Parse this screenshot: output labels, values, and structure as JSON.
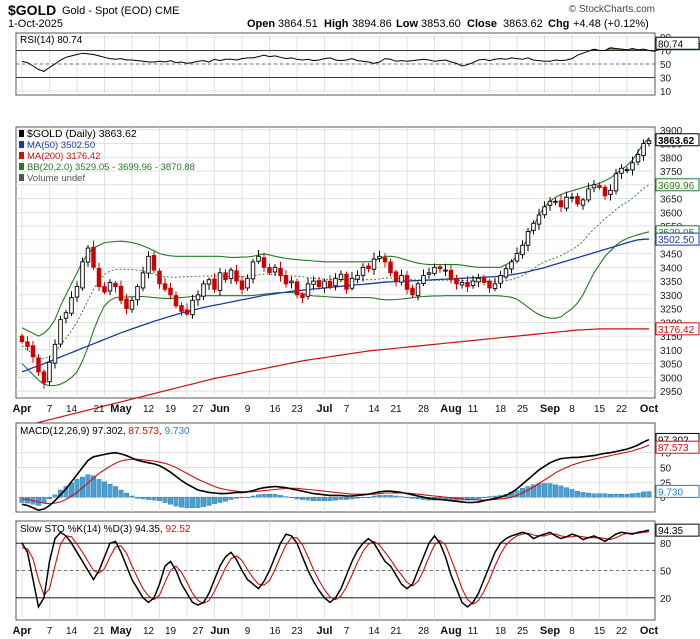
{
  "header": {
    "symbol": "$GOLD",
    "name": "Gold - Spot (EOD)",
    "exchange": "CME",
    "date": "1-Oct-2025",
    "open_label": "Open",
    "open": "3864.51",
    "high_label": "High",
    "high": "3894.86",
    "low_label": "Low",
    "low": "3853.60",
    "close_label": "Close",
    "close": "3863.62",
    "chg_label": "Chg",
    "chg": "+4.48 (+0.12%)",
    "brand": "© StockCharts.com"
  },
  "colors": {
    "price_up": "#000000",
    "price_down": "#cc0000",
    "ma50": "#1c3aa0",
    "ma200": "#cc1111",
    "bb": "#237a23",
    "rsi_fill": "#4f8f4f",
    "macd_hist": "#4a9fd4",
    "grid": "#d7d7d7"
  },
  "chart_data": [
    {
      "panel": "rsi",
      "type": "line",
      "title": "RSI(14) 80.74",
      "last": "80.74",
      "ylim": [
        10,
        90
      ],
      "yticks": [
        "90",
        "70",
        "50",
        "30",
        "10"
      ],
      "overbought": 70,
      "oversold": 30,
      "values": [
        54,
        52,
        47,
        42,
        39,
        45,
        50,
        56,
        60,
        62,
        64,
        66,
        65,
        64,
        62,
        60,
        58,
        57,
        58,
        56,
        56,
        55,
        54,
        53,
        53,
        54,
        53,
        55,
        52,
        53,
        51,
        52,
        54,
        55,
        53,
        57,
        55,
        57,
        57,
        56,
        58,
        59,
        59,
        61,
        63,
        61,
        62,
        60,
        58,
        59,
        57,
        56,
        57,
        55,
        56,
        58,
        59,
        56,
        55,
        56,
        58,
        55,
        54,
        53,
        51,
        53,
        58,
        57,
        54,
        55,
        54,
        55,
        56,
        57,
        56,
        54,
        55,
        56,
        53,
        51,
        47,
        49,
        52,
        56,
        57,
        55,
        57,
        58,
        57,
        59,
        58,
        57,
        59,
        56,
        55,
        54,
        54,
        56,
        55,
        56,
        58,
        63,
        66,
        69,
        72,
        70,
        70,
        74,
        73,
        72,
        71,
        73,
        71,
        72,
        70,
        69,
        72,
        72,
        73,
        76,
        77,
        78,
        79,
        80,
        81
      ]
    },
    {
      "panel": "price",
      "type": "candlestick",
      "title": "$GOLD (Daily) 3863.62",
      "ylim": [
        2925,
        3910
      ],
      "yticks": [
        "3900",
        "3850",
        "3800",
        "3750",
        "3700",
        "3650",
        "3600",
        "3550",
        "3500",
        "3450",
        "3400",
        "3350",
        "3300",
        "3250",
        "3200",
        "3150",
        "3100",
        "3050",
        "3000",
        "2950"
      ],
      "x_labels": [
        "Apr",
        "7",
        "14",
        "21",
        "May",
        "12",
        "19",
        "27",
        "Jun",
        "9",
        "16",
        "23",
        "Jul",
        "7",
        "14",
        "21",
        "28",
        "Aug",
        "11",
        "18",
        "25",
        "Sep",
        "8",
        "15",
        "22",
        "Oct"
      ],
      "legend": [
        {
          "text": "$GOLD (Daily) 3863.62",
          "color": "#000000"
        },
        {
          "text": "MA(50) 3502.50",
          "color": "#1c3aa0"
        },
        {
          "text": "MA(200) 3176.42",
          "color": "#cc1111"
        },
        {
          "text": "BB(20,2.0) 3529.05 - 3699.96 - 3870.88",
          "color": "#237a23"
        },
        {
          "text": "Volume undef",
          "color": "#555555"
        }
      ],
      "value_tags": [
        {
          "text": "3863.62",
          "value": 3863.62,
          "color": "#000000"
        },
        {
          "text": "3699.96",
          "value": 3699.96,
          "color": "#237a23"
        },
        {
          "text": "3529.05",
          "value": 3529.05,
          "color": "#237a23"
        },
        {
          "text": "3502.50",
          "value": 3502.5,
          "color": "#1c3aa0"
        },
        {
          "text": "3176.42",
          "value": 3176.42,
          "color": "#cc1111"
        }
      ],
      "close": [
        3130,
        3112,
        3075,
        3020,
        2980,
        3055,
        3120,
        3210,
        3235,
        3290,
        3330,
        3420,
        3470,
        3400,
        3330,
        3310,
        3345,
        3330,
        3280,
        3250,
        3280,
        3330,
        3380,
        3440,
        3390,
        3340,
        3320,
        3300,
        3260,
        3240,
        3230,
        3280,
        3300,
        3340,
        3355,
        3320,
        3380,
        3355,
        3390,
        3350,
        3320,
        3360,
        3420,
        3440,
        3400,
        3380,
        3400,
        3370,
        3340,
        3350,
        3300,
        3290,
        3340,
        3350,
        3330,
        3350,
        3330,
        3360,
        3375,
        3320,
        3360,
        3370,
        3400,
        3395,
        3430,
        3440,
        3420,
        3380,
        3350,
        3370,
        3320,
        3300,
        3340,
        3370,
        3380,
        3400,
        3395,
        3390,
        3355,
        3340,
        3345,
        3330,
        3350,
        3360,
        3345,
        3325,
        3340,
        3370,
        3395,
        3420,
        3450,
        3480,
        3530,
        3560,
        3590,
        3620,
        3640,
        3640,
        3620,
        3655,
        3655,
        3630,
        3645,
        3685,
        3700,
        3690,
        3660,
        3680,
        3740,
        3760,
        3755,
        3780,
        3810,
        3850,
        3860
      ],
      "ma50": [
        3020,
        3027,
        3035,
        3042,
        3050,
        3058,
        3066,
        3074,
        3082,
        3090,
        3098,
        3106,
        3114,
        3122,
        3130,
        3138,
        3146,
        3154,
        3162,
        3169,
        3176,
        3183,
        3190,
        3197,
        3204,
        3210,
        3216,
        3222,
        3228,
        3234,
        3239,
        3244,
        3249,
        3254,
        3258,
        3262,
        3266,
        3270,
        3274,
        3278,
        3282,
        3286,
        3290,
        3294,
        3298,
        3301,
        3304,
        3307,
        3310,
        3313,
        3315,
        3317,
        3319,
        3321,
        3323,
        3325,
        3327,
        3329,
        3331,
        3333,
        3335,
        3337,
        3338,
        3340,
        3342,
        3344,
        3346,
        3347,
        3348,
        3349,
        3350,
        3351,
        3352,
        3353,
        3354,
        3355,
        3356,
        3357,
        3358,
        3359,
        3360,
        3361,
        3362,
        3363,
        3364,
        3365,
        3366,
        3368,
        3370,
        3373,
        3376,
        3380,
        3384,
        3389,
        3394,
        3399,
        3405,
        3411,
        3417,
        3423,
        3429,
        3435,
        3441,
        3447,
        3453,
        3459,
        3465,
        3471,
        3477,
        3483,
        3489,
        3495,
        3500,
        3502,
        3503
      ],
      "ma200": [
        2820,
        2826,
        2831,
        2836,
        2841,
        2846,
        2851,
        2856,
        2861,
        2866,
        2871,
        2876,
        2881,
        2886,
        2891,
        2896,
        2901,
        2906,
        2911,
        2916,
        2921,
        2926,
        2931,
        2936,
        2941,
        2946,
        2951,
        2956,
        2961,
        2966,
        2971,
        2976,
        2981,
        2986,
        2991,
        2996,
        3000,
        3004,
        3008,
        3012,
        3016,
        3020,
        3024,
        3028,
        3032,
        3036,
        3040,
        3044,
        3048,
        3052,
        3056,
        3060,
        3063,
        3066,
        3069,
        3072,
        3075,
        3078,
        3081,
        3084,
        3087,
        3090,
        3093,
        3096,
        3098,
        3100,
        3102,
        3104,
        3106,
        3108,
        3110,
        3112,
        3114,
        3116,
        3118,
        3120,
        3122,
        3124,
        3126,
        3128,
        3130,
        3132,
        3134,
        3136,
        3138,
        3140,
        3142,
        3144,
        3146,
        3148,
        3150,
        3152,
        3154,
        3156,
        3158,
        3160,
        3162,
        3164,
        3166,
        3168,
        3170,
        3172,
        3173,
        3174,
        3175,
        3176,
        3176,
        3176,
        3176,
        3176,
        3176,
        3176,
        3176,
        3176,
        3176
      ],
      "bb_upper": [
        3180,
        3170,
        3160,
        3150,
        3160,
        3180,
        3210,
        3260,
        3300,
        3340,
        3380,
        3420,
        3450,
        3470,
        3480,
        3490,
        3492,
        3494,
        3495,
        3493,
        3490,
        3485,
        3478,
        3470,
        3460,
        3450,
        3445,
        3442,
        3440,
        3440,
        3440,
        3440,
        3440,
        3440,
        3440,
        3440,
        3440,
        3438,
        3436,
        3436,
        3437,
        3438,
        3440,
        3445,
        3448,
        3445,
        3440,
        3436,
        3432,
        3430,
        3428,
        3426,
        3425,
        3423,
        3422,
        3420,
        3420,
        3420,
        3420,
        3420,
        3420,
        3420,
        3420,
        3420,
        3422,
        3432,
        3440,
        3440,
        3438,
        3432,
        3426,
        3420,
        3415,
        3412,
        3410,
        3410,
        3410,
        3410,
        3410,
        3410,
        3408,
        3405,
        3402,
        3400,
        3400,
        3400,
        3400,
        3400,
        3410,
        3420,
        3440,
        3470,
        3510,
        3550,
        3590,
        3620,
        3640,
        3655,
        3665,
        3672,
        3678,
        3684,
        3690,
        3696,
        3700,
        3705,
        3715,
        3725,
        3740,
        3755,
        3770,
        3790,
        3820,
        3850,
        3871
      ],
      "bb_lower": [
        3050,
        3030,
        3010,
        2990,
        2975,
        2970,
        2970,
        2975,
        2985,
        3000,
        3020,
        3060,
        3110,
        3170,
        3220,
        3260,
        3280,
        3290,
        3292,
        3292,
        3293,
        3294,
        3294,
        3292,
        3290,
        3288,
        3287,
        3287,
        3288,
        3290,
        3292,
        3294,
        3295,
        3296,
        3297,
        3297,
        3297,
        3297,
        3297,
        3297,
        3297,
        3297,
        3298,
        3300,
        3303,
        3305,
        3307,
        3308,
        3308,
        3308,
        3307,
        3305,
        3300,
        3296,
        3295,
        3294,
        3292,
        3291,
        3290,
        3290,
        3290,
        3290,
        3290,
        3290,
        3288,
        3284,
        3282,
        3282,
        3283,
        3285,
        3287,
        3290,
        3292,
        3294,
        3295,
        3296,
        3296,
        3297,
        3297,
        3297,
        3297,
        3297,
        3297,
        3297,
        3297,
        3297,
        3297,
        3296,
        3294,
        3291,
        3284,
        3270,
        3255,
        3240,
        3228,
        3220,
        3215,
        3215,
        3220,
        3235,
        3250,
        3270,
        3300,
        3340,
        3380,
        3410,
        3440,
        3460,
        3480,
        3495,
        3505,
        3512,
        3518,
        3524,
        3529
      ]
    },
    {
      "panel": "macd",
      "type": "line",
      "title": "MACD(12,26,9) 97.302, 87.573, 9.730",
      "macd_label": "MACD(12,26,9)",
      "values_text": [
        "97.302",
        "87.573",
        "9.730"
      ],
      "ylim": [
        -25,
        125
      ],
      "yticks": [
        "75",
        "50",
        "25",
        "0"
      ],
      "macd": [
        -12,
        -14,
        -18,
        -22,
        -20,
        -14,
        -6,
        4,
        14,
        26,
        38,
        50,
        62,
        68,
        70,
        72,
        74,
        75,
        73,
        70,
        66,
        62,
        60,
        58,
        56,
        53,
        48,
        42,
        35,
        28,
        22,
        17,
        12,
        10,
        8,
        7,
        6,
        6,
        7,
        8,
        8,
        9,
        11,
        14,
        16,
        17,
        18,
        17,
        16,
        14,
        12,
        10,
        8,
        6,
        5,
        4,
        3,
        3,
        3,
        2,
        2,
        3,
        4,
        5,
        7,
        9,
        10,
        10,
        9,
        8,
        6,
        4,
        2,
        0,
        -2,
        -3,
        -4,
        -5,
        -6,
        -7,
        -8,
        -9,
        -9,
        -8,
        -6,
        -4,
        -2,
        0,
        3,
        8,
        14,
        22,
        30,
        38,
        46,
        52,
        58,
        62,
        65,
        66,
        67,
        67,
        68,
        69,
        70,
        72,
        74,
        75,
        77,
        79,
        81,
        84,
        88,
        93,
        97
      ],
      "signal": [
        -3,
        -4,
        -6,
        -8,
        -10,
        -11,
        -10,
        -8,
        -4,
        2,
        8,
        16,
        24,
        32,
        40,
        46,
        52,
        57,
        61,
        63,
        64,
        64,
        63,
        62,
        61,
        59,
        57,
        54,
        50,
        45,
        40,
        35,
        30,
        26,
        22,
        18,
        15,
        13,
        11,
        10,
        9,
        9,
        9,
        10,
        11,
        12,
        13,
        14,
        15,
        15,
        15,
        14,
        13,
        12,
        11,
        10,
        9,
        8,
        7,
        6,
        5,
        5,
        5,
        5,
        5,
        6,
        7,
        7,
        7,
        7,
        7,
        6,
        5,
        4,
        3,
        2,
        1,
        0,
        -1,
        -2,
        -3,
        -4,
        -4,
        -5,
        -5,
        -5,
        -4,
        -3,
        -2,
        0,
        3,
        7,
        12,
        17,
        23,
        29,
        35,
        41,
        46,
        50,
        54,
        57,
        60,
        62,
        64,
        66,
        68,
        70,
        72,
        74,
        76,
        78,
        81,
        84,
        87.573
      ]
    },
    {
      "panel": "stochastic",
      "type": "line",
      "title": "Slow STO %K(14) %D(3) 94.35, 92.52",
      "sto_label": "Slow STO %K(14) %D(3)",
      "values_text": [
        "94.35",
        "92.52"
      ],
      "ylim": [
        0,
        100
      ],
      "yticks": [
        "80",
        "50",
        "20"
      ],
      "k": [
        80,
        70,
        40,
        10,
        20,
        60,
        85,
        92,
        88,
        80,
        70,
        60,
        50,
        40,
        50,
        65,
        80,
        82,
        70,
        55,
        40,
        30,
        20,
        15,
        20,
        35,
        55,
        60,
        50,
        35,
        25,
        15,
        12,
        15,
        25,
        40,
        55,
        65,
        70,
        62,
        50,
        40,
        35,
        30,
        38,
        50,
        65,
        80,
        90,
        88,
        80,
        65,
        50,
        38,
        28,
        20,
        15,
        20,
        30,
        45,
        60,
        72,
        80,
        85,
        80,
        70,
        60,
        55,
        45,
        35,
        30,
        35,
        50,
        65,
        80,
        88,
        80,
        65,
        45,
        30,
        15,
        10,
        15,
        25,
        40,
        55,
        70,
        80,
        85,
        88,
        90,
        92,
        90,
        85,
        88,
        90,
        92,
        88,
        85,
        87,
        90,
        88,
        84,
        86,
        88,
        85,
        82,
        86,
        90,
        92,
        91,
        90,
        92,
        93,
        94.35
      ],
      "d": [
        75,
        74,
        63,
        40,
        23,
        30,
        55,
        79,
        88,
        87,
        79,
        70,
        60,
        50,
        47,
        52,
        65,
        76,
        77,
        69,
        55,
        42,
        30,
        22,
        18,
        23,
        37,
        50,
        55,
        48,
        37,
        25,
        17,
        14,
        17,
        27,
        40,
        53,
        63,
        66,
        61,
        51,
        42,
        35,
        34,
        39,
        51,
        65,
        78,
        86,
        86,
        78,
        65,
        51,
        39,
        29,
        21,
        18,
        22,
        32,
        45,
        59,
        71,
        79,
        82,
        78,
        70,
        62,
        53,
        45,
        37,
        33,
        38,
        50,
        65,
        78,
        83,
        78,
        63,
        47,
        30,
        18,
        13,
        17,
        27,
        40,
        55,
        68,
        78,
        84,
        88,
        90,
        91,
        89,
        88,
        88,
        90,
        90,
        88,
        87,
        87,
        88,
        87,
        86,
        86,
        86,
        85,
        84,
        86,
        89,
        91,
        91,
        91,
        92,
        92.52
      ]
    }
  ]
}
